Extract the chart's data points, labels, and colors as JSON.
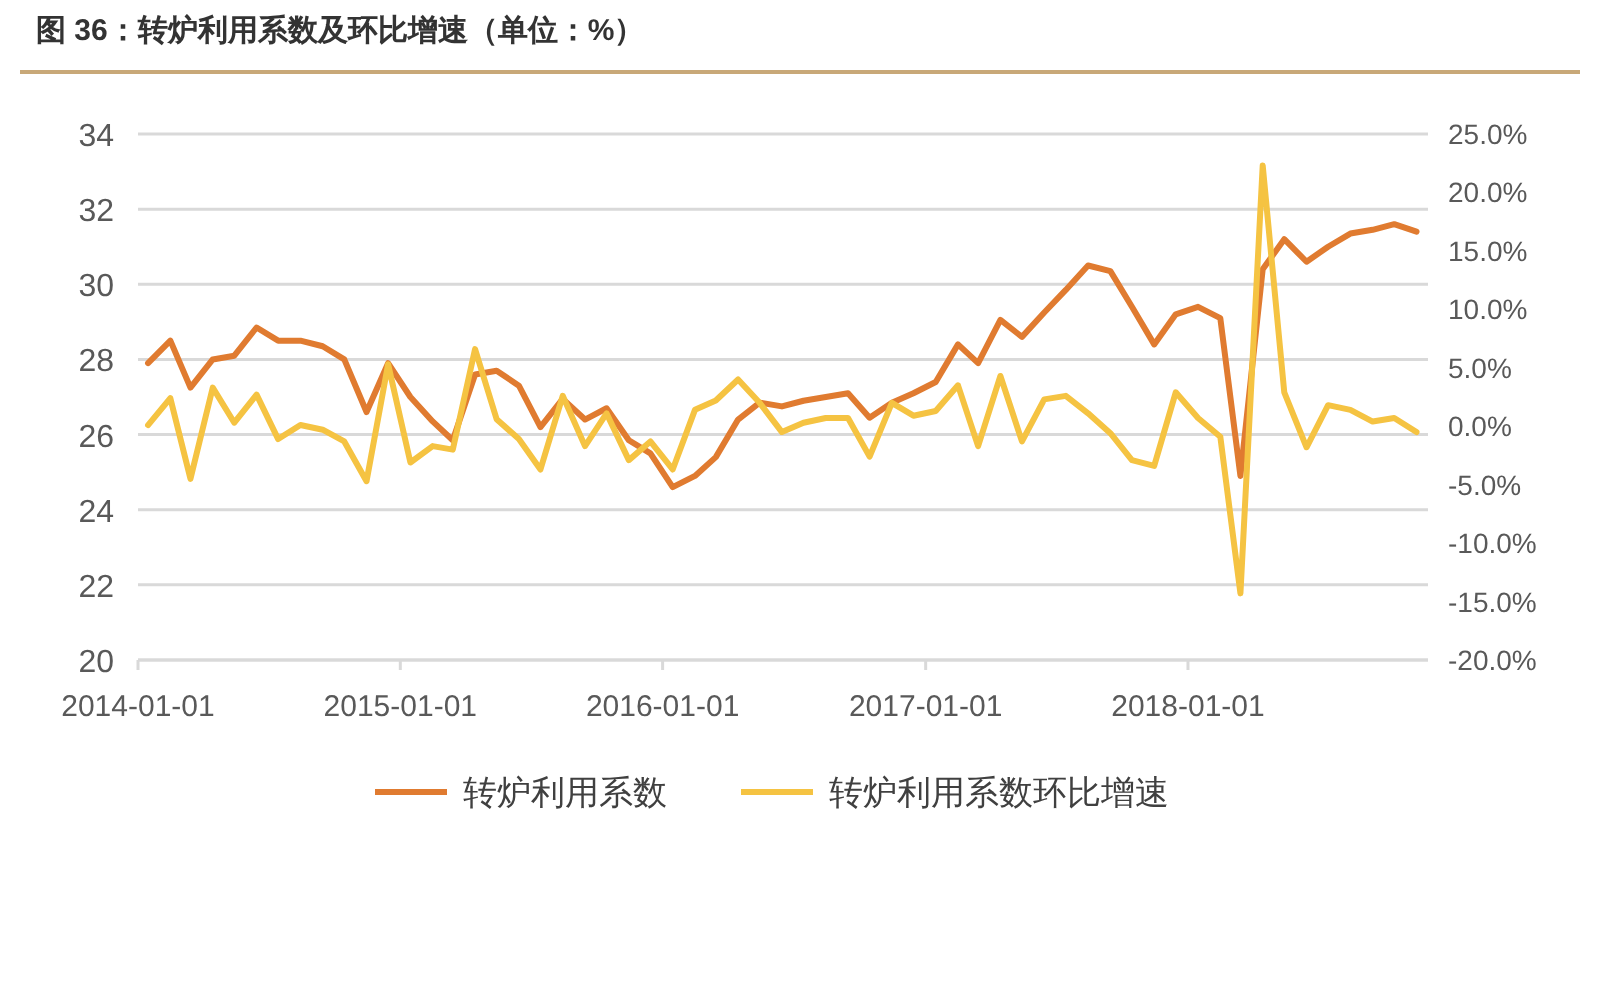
{
  "chart_data": {
    "type": "line",
    "title": "图 36：转炉利用系数及环比增速（单位：%）",
    "x": [
      "2014-01-15",
      "2014-02-15",
      "2014-03-15",
      "2014-04-15",
      "2014-05-15",
      "2014-06-15",
      "2014-07-15",
      "2014-08-15",
      "2014-09-15",
      "2014-10-15",
      "2014-11-15",
      "2014-12-15",
      "2015-01-15",
      "2015-02-15",
      "2015-03-15",
      "2015-04-15",
      "2015-05-15",
      "2015-06-15",
      "2015-07-15",
      "2015-08-15",
      "2015-09-15",
      "2015-10-15",
      "2015-11-15",
      "2015-12-15",
      "2016-01-15",
      "2016-02-15",
      "2016-03-15",
      "2016-04-15",
      "2016-05-15",
      "2016-06-15",
      "2016-07-15",
      "2016-08-15",
      "2016-09-15",
      "2016-10-15",
      "2016-11-15",
      "2016-12-15",
      "2017-01-15",
      "2017-02-15",
      "2017-03-15",
      "2017-04-15",
      "2017-05-15",
      "2017-06-15",
      "2017-07-15",
      "2017-08-15",
      "2017-09-15",
      "2017-10-15",
      "2017-11-15",
      "2017-12-15",
      "2018-01-15",
      "2018-02-15",
      "2018-03-15",
      "2018-04-15",
      "2018-05-15",
      "2018-06-15",
      "2018-07-15",
      "2018-08-15",
      "2018-09-15",
      "2018-10-15",
      "2018-11-15"
    ],
    "series": [
      {
        "name": "转炉利用系数",
        "color": "#e07b30",
        "values": [
          27.9,
          28.5,
          27.25,
          28.0,
          28.1,
          28.85,
          28.5,
          28.5,
          28.35,
          28.0,
          26.6,
          27.9,
          27.0,
          26.35,
          25.85,
          27.6,
          27.7,
          27.3,
          26.2,
          26.95,
          26.4,
          26.7,
          25.85,
          25.5,
          24.6,
          24.9,
          25.4,
          26.4,
          26.85,
          26.75,
          26.9,
          27.0,
          27.1,
          26.45,
          26.85,
          27.1,
          27.4,
          28.4,
          27.9,
          29.05,
          28.6,
          29.25,
          29.85,
          30.5,
          30.35,
          29.4,
          28.4,
          29.2,
          29.4,
          29.1,
          24.9,
          30.4,
          31.2,
          30.6,
          31.0,
          31.35,
          31.45,
          31.6,
          31.4
        ]
      },
      {
        "name": "转炉利用系数环比增速",
        "color": "#f5c342",
        "axis": "y2",
        "values": [
          0.1,
          2.4,
          -4.5,
          3.3,
          0.3,
          2.7,
          -1.1,
          0.1,
          -0.3,
          -1.3,
          -4.7,
          5.3,
          -3.1,
          -1.7,
          -2.0,
          6.6,
          0.6,
          -1.1,
          -3.7,
          2.6,
          -1.7,
          1.1,
          -2.9,
          -1.3,
          -3.7,
          1.4,
          2.2,
          4.0,
          2.0,
          -0.5,
          0.3,
          0.7,
          0.7,
          -2.6,
          2.0,
          0.9,
          1.3,
          3.5,
          -1.7,
          4.3,
          -1.3,
          2.3,
          2.6,
          1.1,
          -0.6,
          -2.9,
          -3.4,
          2.9,
          0.7,
          -0.9,
          -14.3,
          22.3,
          2.9,
          -1.8,
          1.8,
          1.4,
          0.4,
          0.7,
          -0.5
        ]
      }
    ],
    "xlim": [
      "2014-01-01",
      "2018-12-01"
    ],
    "xticks": [
      "2014-01-01",
      "2015-01-01",
      "2016-01-01",
      "2017-01-01",
      "2018-01-01"
    ],
    "ylim": [
      20,
      34
    ],
    "yticks": [
      20,
      22,
      24,
      26,
      28,
      30,
      32,
      34
    ],
    "y2lim": [
      -20,
      25
    ],
    "y2ticks": [
      {
        "value": -20,
        "label": "-20.0%"
      },
      {
        "value": -15,
        "label": "-15.0%"
      },
      {
        "value": -10,
        "label": "-10.0%"
      },
      {
        "value": -5,
        "label": "-5.0%"
      },
      {
        "value": 0,
        "label": "0.0%"
      },
      {
        "value": 5,
        "label": "5.0%"
      },
      {
        "value": 10,
        "label": "10.0%"
      },
      {
        "value": 15,
        "label": "15.0%"
      },
      {
        "value": 20,
        "label": "20.0%"
      },
      {
        "value": 25,
        "label": "25.0%"
      }
    ],
    "grid": "y",
    "legend": "bottom"
  }
}
